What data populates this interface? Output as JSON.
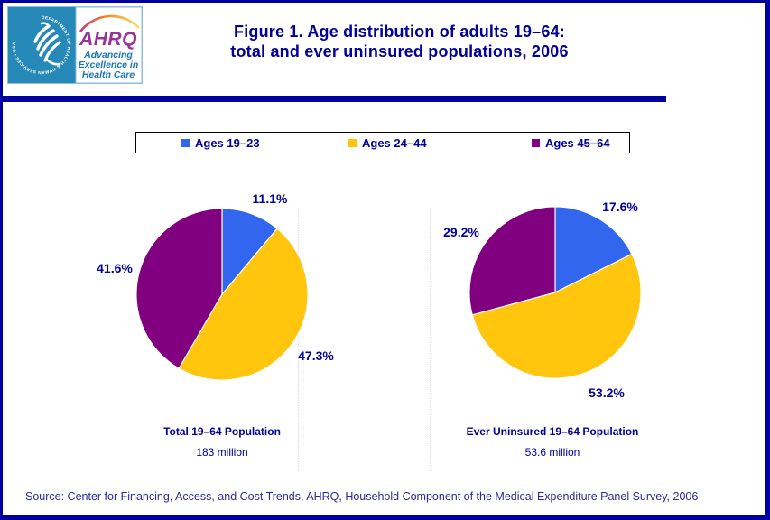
{
  "header": {
    "title_line1": "Figure 1. Age distribution of adults 19–64:",
    "title_line2": "total and ever uninsured populations, 2006"
  },
  "logo": {
    "seal_text": "DEPARTMENT OF HEALTH & HUMAN SERVICES • USA",
    "org_abbr": "AHRQ",
    "tagline_lines": [
      "Advancing",
      "Excellence in",
      "Health Care"
    ],
    "colors": {
      "seal_bg": "#2789B7",
      "org": "#993399",
      "tagline": "#1B75BC"
    }
  },
  "accent": {
    "navy_text": "#000099",
    "bar_color": "#0000A0"
  },
  "legend": {
    "items": [
      {
        "label": "Ages 19–23",
        "color": "#3366EE"
      },
      {
        "label": "Ages 24–44",
        "color": "#FFC60D"
      },
      {
        "label": "Ages 45–64",
        "color": "#800080"
      }
    ]
  },
  "chart_data": [
    {
      "type": "pie",
      "title": "Total 19–64 Population",
      "subtitle": "183 million",
      "categories": [
        "Ages 19–23",
        "Ages 24–44",
        "Ages 45–64"
      ],
      "values": [
        11.1,
        47.3,
        41.6
      ],
      "labels": [
        "11.1%",
        "47.3%",
        "41.6%"
      ],
      "colors": [
        "#3366EE",
        "#FFC60D",
        "#800080"
      ],
      "start_angle_deg": 0,
      "direction": "clockwise",
      "legend_position": "top"
    },
    {
      "type": "pie",
      "title": "Ever Uninsured 19–64 Population",
      "subtitle": "53.6 million",
      "categories": [
        "Ages 19–23",
        "Ages 24–44",
        "Ages 45–64"
      ],
      "values": [
        17.6,
        53.2,
        29.2
      ],
      "labels": [
        "17.6%",
        "53.2%",
        "29.2%"
      ],
      "colors": [
        "#3366EE",
        "#FFC60D",
        "#800080"
      ],
      "start_angle_deg": 0,
      "direction": "clockwise",
      "legend_position": "top"
    }
  ],
  "footer": {
    "source": "Source: Center for Financing, Access, and Cost Trends, AHRQ, Household Component of the Medical Expenditure Panel Survey, 2006"
  }
}
